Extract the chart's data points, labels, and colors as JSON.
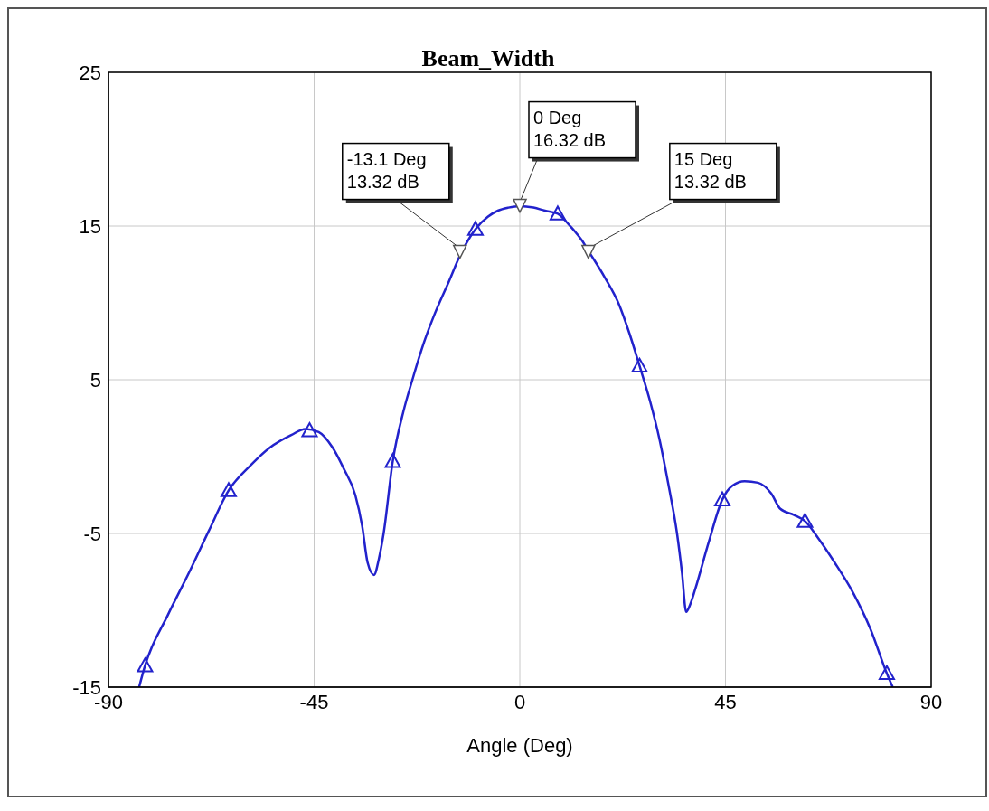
{
  "chart_data": {
    "type": "line",
    "title": "Beam_Width",
    "xlabel": "Angle (Deg)",
    "xlim": [
      -90,
      90
    ],
    "xticks": [
      -90,
      -45,
      0,
      45,
      90
    ],
    "ylim": [
      -15,
      25
    ],
    "yticks": [
      -15,
      -5,
      5,
      15,
      25
    ],
    "grid": true,
    "legend": false,
    "series": [
      {
        "color": "#2222cc",
        "marker": "none",
        "line_style": "solid",
        "x": [
          -83.3,
          -82,
          -77,
          -72.3,
          -68,
          -63.7,
          -59,
          -54.6,
          -50,
          -46.9,
          -44,
          -41,
          -38.5,
          -36,
          -34.5,
          -33.3,
          -31.9,
          -30.8,
          -29.8,
          -27.8,
          -25.5,
          -23.5,
          -21,
          -18.6,
          -15.5,
          -12.9,
          -9.7,
          -7,
          -4.8,
          -2.5,
          0,
          3,
          5.5,
          8.3,
          11,
          13.5,
          15.4,
          18.5,
          21.7,
          24,
          26.2,
          28.5,
          30.5,
          32.5,
          34.4,
          35.5,
          36.4,
          37.3,
          38.3,
          41.3,
          44.3,
          46.5,
          49.2,
          52.1,
          55,
          57,
          60,
          62.4,
          65.5,
          68.9,
          73,
          76.7,
          80.3,
          81.6
        ],
        "values": [
          -15,
          -13.6,
          -10.3,
          -7.5,
          -4.8,
          -2.2,
          -0.6,
          0.6,
          1.4,
          1.8,
          1.6,
          0.6,
          -0.8,
          -2.5,
          -4.5,
          -6.9,
          -7.7,
          -6.6,
          -5,
          -0.3,
          2.9,
          5,
          7.4,
          9.3,
          11.4,
          13.2,
          14.8,
          15.6,
          16,
          16.2,
          16.3,
          16.2,
          16,
          15.8,
          15,
          14.1,
          13.2,
          11.7,
          9.9,
          8,
          5.9,
          3.6,
          1.2,
          -1.8,
          -5,
          -7.6,
          -10.1,
          -9.6,
          -8.7,
          -5.6,
          -2.8,
          -1.9,
          -1.6,
          -1.7,
          -2.4,
          -3.4,
          -3.8,
          -4.2,
          -5.4,
          -6.9,
          -8.9,
          -11.2,
          -14.1,
          -15
        ]
      },
      {
        "type": "scatter",
        "color": "#2222cc",
        "marker": "triangle",
        "x": [
          -82,
          -63.7,
          -46,
          -27.8,
          -9.7,
          8.3,
          26.2,
          44.3,
          62.4,
          80.3
        ],
        "values": [
          -13.6,
          -2.2,
          1.7,
          -0.3,
          14.8,
          15.8,
          5.9,
          -2.8,
          -4.2,
          -14.1
        ]
      }
    ],
    "annotations": [
      {
        "text": "-13.1 Deg\n13.32 dB",
        "x": -13.1,
        "y": 13.32
      },
      {
        "text": "0 Deg\n16.32 dB",
        "x": 0,
        "y": 16.32
      },
      {
        "text": "15 Deg\n13.32 dB",
        "x": 15,
        "y": 13.32
      }
    ]
  }
}
